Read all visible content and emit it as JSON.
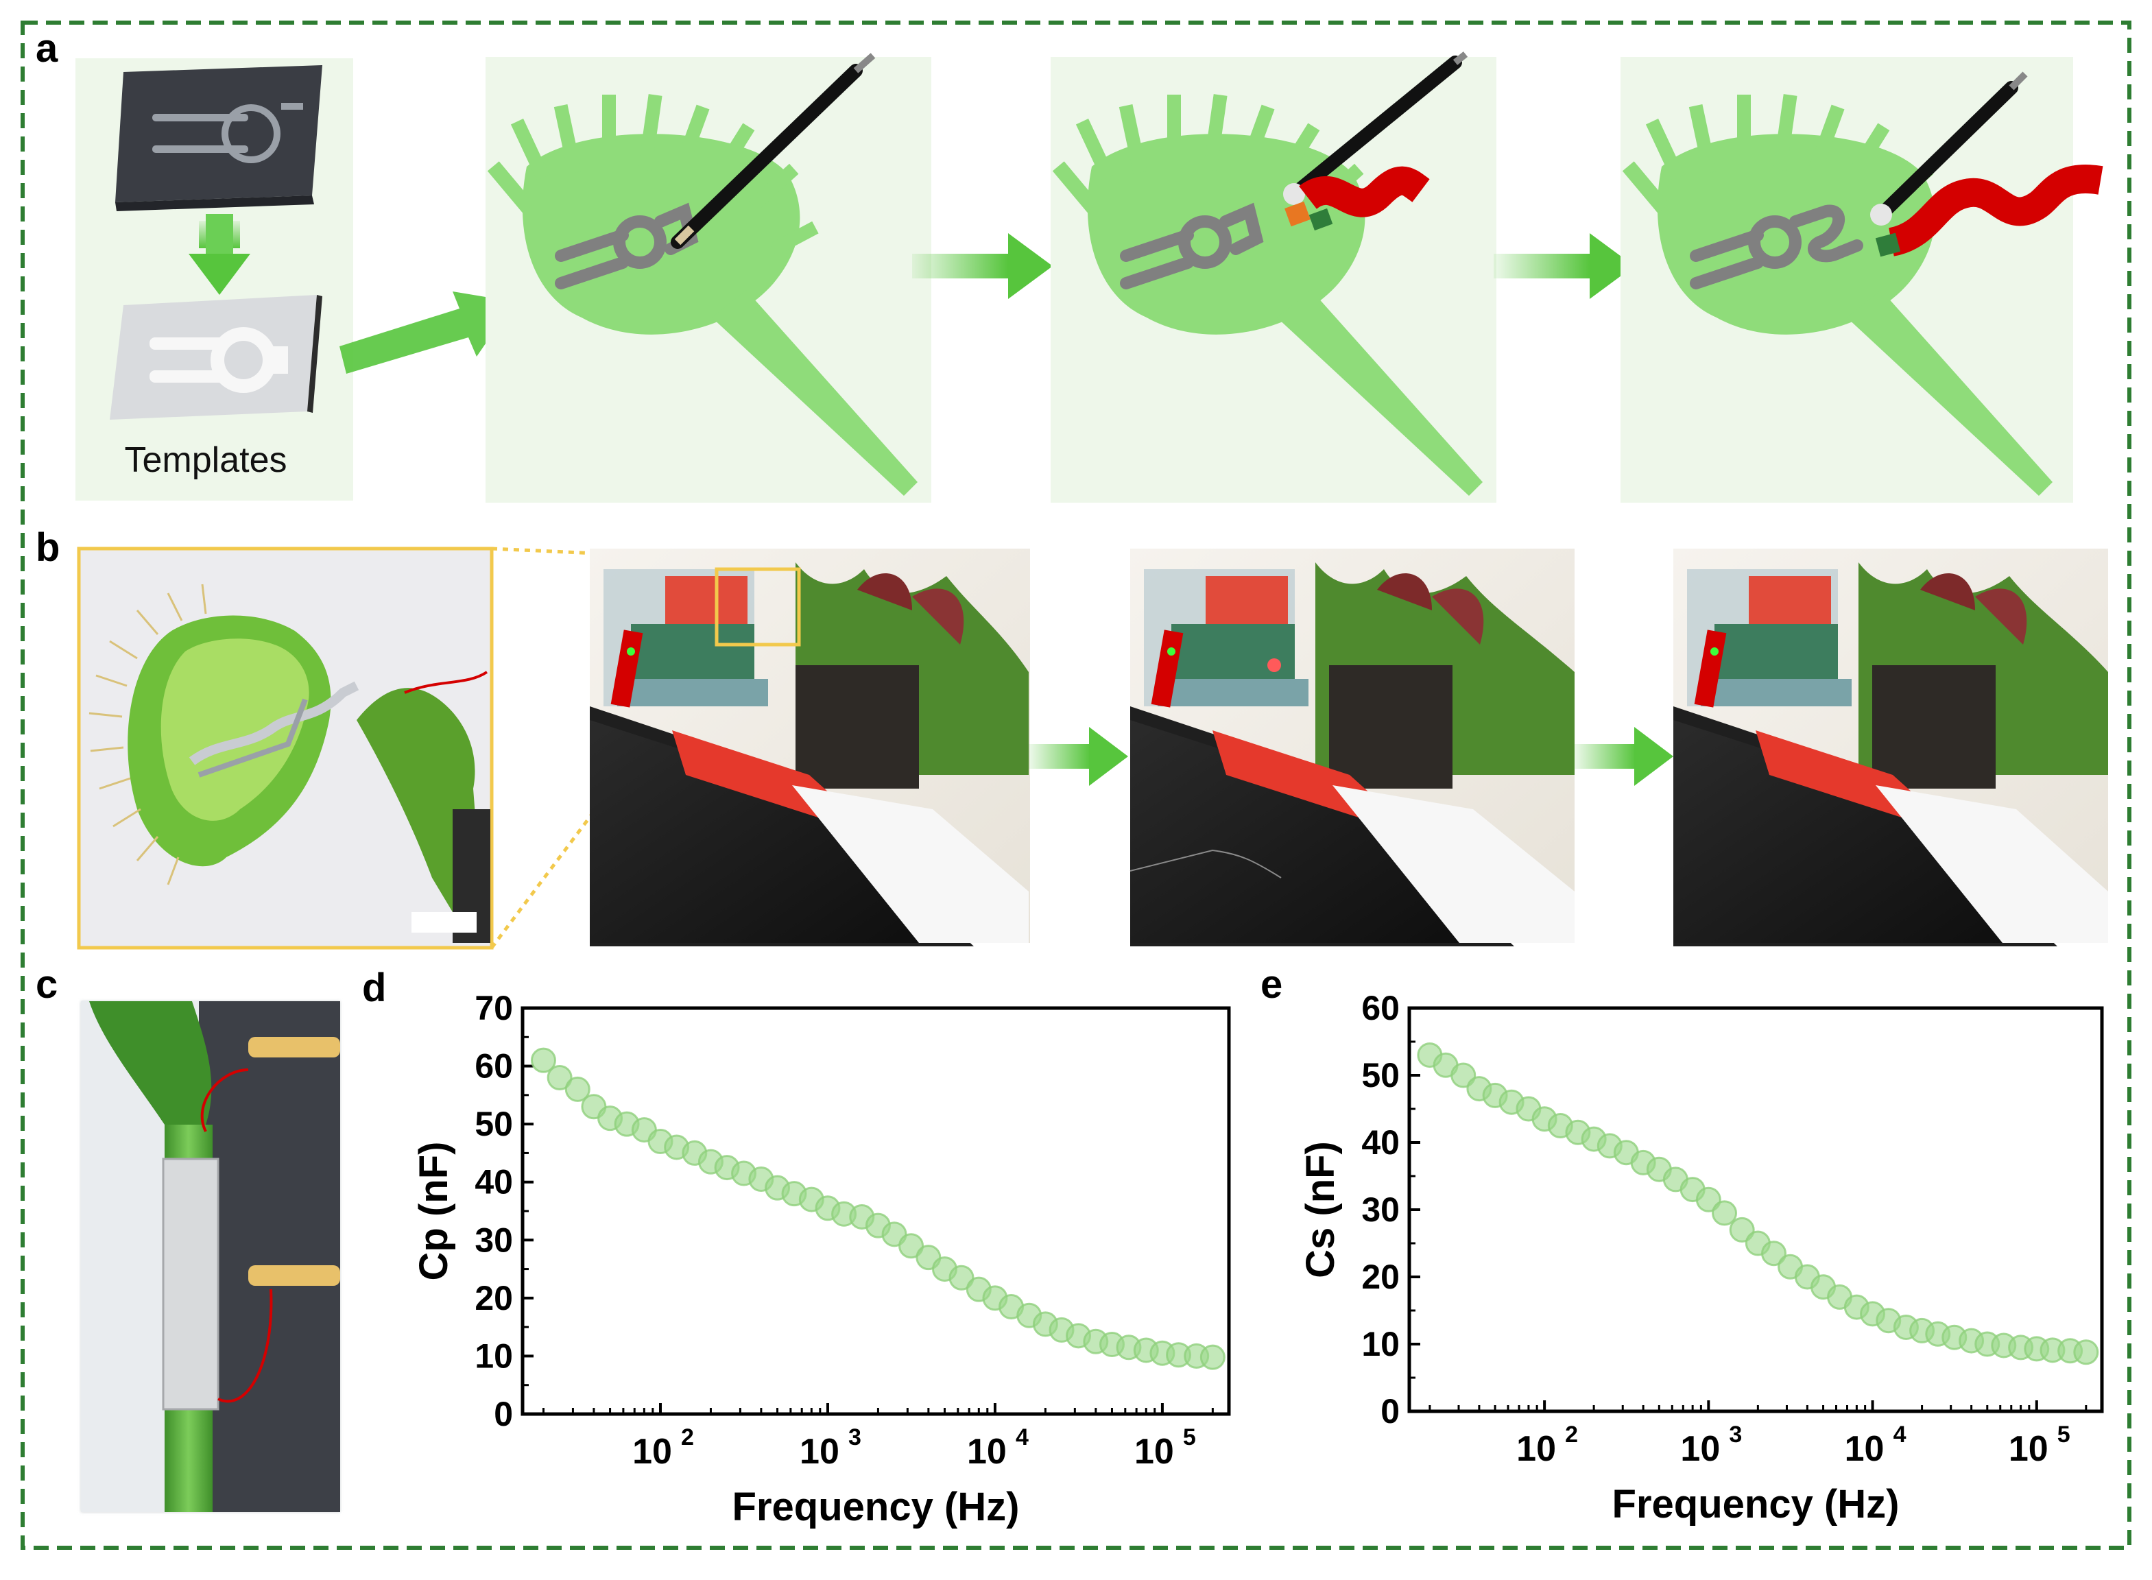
{
  "panels": {
    "a": "a",
    "b": "b",
    "c": "c",
    "d": "d",
    "e": "e"
  },
  "templates_label": "Templates",
  "colors": {
    "border": "#2e7d32",
    "leaf": "#8fdc7a",
    "panel_bg": "#eef7ea",
    "arrow": "#57c53d",
    "electrode": "#808080",
    "wire": "#d40000",
    "marker": "#9bd98a",
    "highlight": "#f2c94c"
  },
  "chart_data": [
    {
      "panel": "d",
      "type": "scatter",
      "xlabel": "Frequency (Hz)",
      "ylabel": "Cp (nF)",
      "xscale": "log",
      "xlim": [
        15,
        250000
      ],
      "ylim": [
        0,
        70
      ],
      "yticks": [
        0,
        10,
        20,
        30,
        40,
        50,
        60,
        70
      ],
      "xticks": [
        {
          "base": "10",
          "exp": "2",
          "value": 100
        },
        {
          "base": "10",
          "exp": "3",
          "value": 1000
        },
        {
          "base": "10",
          "exp": "4",
          "value": 10000
        },
        {
          "base": "10",
          "exp": "5",
          "value": 100000
        }
      ],
      "x": [
        20,
        25,
        32,
        40,
        50,
        63,
        80,
        100,
        125,
        160,
        200,
        250,
        315,
        400,
        500,
        630,
        800,
        1000,
        1250,
        1600,
        2000,
        2500,
        3150,
        4000,
        5000,
        6300,
        8000,
        10000,
        12500,
        16000,
        20000,
        25000,
        31500,
        40000,
        50000,
        63000,
        80000,
        100000,
        125000,
        160000,
        200000
      ],
      "y": [
        61,
        58,
        56,
        53,
        51,
        50,
        49,
        47,
        46,
        45,
        43.5,
        42.5,
        41.5,
        40.5,
        39,
        38,
        37,
        35.5,
        34.5,
        34,
        32.5,
        31,
        29,
        27,
        25,
        23.5,
        21.5,
        20,
        18.5,
        17,
        15.5,
        14.5,
        13.5,
        12.5,
        12,
        11.5,
        11,
        10.5,
        10.2,
        10,
        9.8
      ]
    },
    {
      "panel": "e",
      "type": "scatter",
      "xlabel": "Frequency (Hz)",
      "ylabel": "Cs (nF)",
      "xscale": "log",
      "xlim": [
        15,
        250000
      ],
      "ylim": [
        0,
        60
      ],
      "yticks": [
        0,
        10,
        20,
        30,
        40,
        50,
        60
      ],
      "xticks": [
        {
          "base": "10",
          "exp": "2",
          "value": 100
        },
        {
          "base": "10",
          "exp": "3",
          "value": 1000
        },
        {
          "base": "10",
          "exp": "4",
          "value": 10000
        },
        {
          "base": "10",
          "exp": "5",
          "value": 100000
        }
      ],
      "x": [
        20,
        25,
        32,
        40,
        50,
        63,
        80,
        100,
        125,
        160,
        200,
        250,
        315,
        400,
        500,
        630,
        800,
        1000,
        1250,
        1600,
        2000,
        2500,
        3150,
        4000,
        5000,
        6300,
        8000,
        10000,
        12500,
        16000,
        20000,
        25000,
        31500,
        40000,
        50000,
        63000,
        80000,
        100000,
        125000,
        160000,
        200000
      ],
      "y": [
        53,
        51.5,
        50,
        48,
        47,
        46,
        45,
        43.5,
        42.5,
        41.5,
        40.5,
        39.5,
        38.5,
        37,
        36,
        34.5,
        33,
        31.5,
        29.5,
        27,
        25,
        23.5,
        21.5,
        20,
        18.5,
        17,
        15.5,
        14.5,
        13.5,
        12.5,
        12,
        11.5,
        11,
        10.5,
        10,
        9.8,
        9.5,
        9.3,
        9.1,
        9,
        8.8
      ]
    }
  ]
}
